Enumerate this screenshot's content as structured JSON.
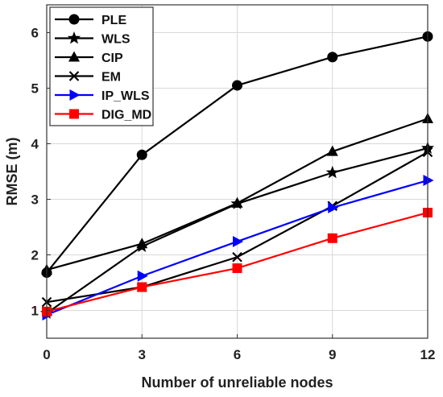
{
  "chart_data": {
    "type": "line",
    "title": "",
    "xlabel": "Number of unreliable nodes",
    "ylabel": "RMSE (m)",
    "x": [
      0,
      3,
      6,
      9,
      12
    ],
    "xlim": [
      0,
      12
    ],
    "ylim": [
      0.5,
      6.5
    ],
    "xticks": [
      0,
      3,
      6,
      9,
      12
    ],
    "yticks": [
      1,
      2,
      3,
      4,
      5,
      6
    ],
    "grid": true,
    "legend_position": "top-left",
    "series": [
      {
        "name": "PLE",
        "marker": "circle",
        "color": "#000000",
        "values": [
          1.68,
          3.8,
          5.05,
          5.56,
          5.93
        ]
      },
      {
        "name": "WLS",
        "marker": "star",
        "color": "#000000",
        "values": [
          0.95,
          2.15,
          2.92,
          3.48,
          3.92
        ]
      },
      {
        "name": "CIP",
        "marker": "triangle-up",
        "color": "#000000",
        "values": [
          1.73,
          2.2,
          2.93,
          3.86,
          4.45
        ]
      },
      {
        "name": "EM",
        "marker": "x",
        "color": "#000000",
        "values": [
          1.15,
          1.42,
          1.96,
          2.88,
          3.85
        ]
      },
      {
        "name": "IP_WLS",
        "marker": "triangle-right",
        "color": "#0000ff",
        "values": [
          0.92,
          1.62,
          2.24,
          2.85,
          3.34
        ]
      },
      {
        "name": "DIG_MD",
        "marker": "square",
        "color": "#ff0000",
        "values": [
          0.98,
          1.42,
          1.76,
          2.3,
          2.76
        ]
      }
    ]
  }
}
